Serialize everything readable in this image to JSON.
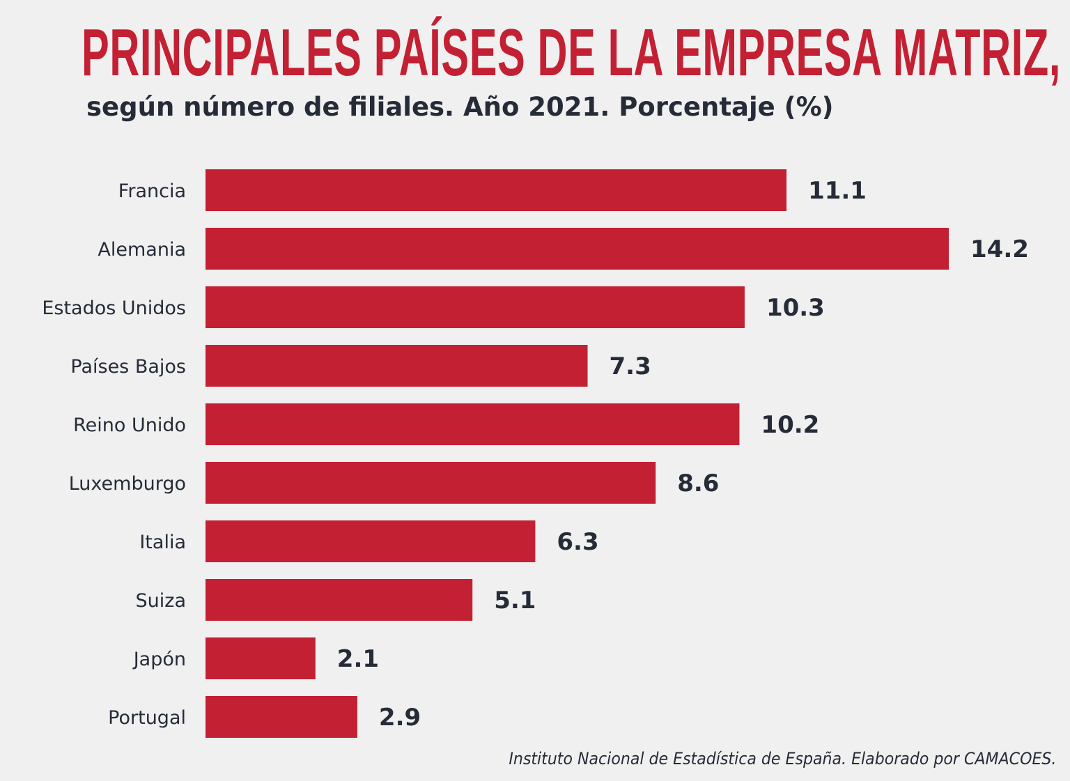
{
  "chart_data": {
    "type": "bar",
    "orientation": "horizontal",
    "title": "PRINCIPALES PAÍSES DE LA EMPRESA MATRIZ,",
    "subtitle": "según número de filiales. Año 2021. Porcentaje (%)",
    "categories": [
      "Francia",
      "Alemania",
      "Estados Unidos",
      "Países Bajos",
      "Reino Unido",
      "Luxemburgo",
      "Italia",
      "Suiza",
      "Japón",
      "Portugal"
    ],
    "values": [
      11.1,
      14.2,
      10.3,
      7.3,
      10.2,
      8.6,
      6.3,
      5.1,
      2.1,
      2.9
    ],
    "data_labels": [
      "11.1",
      "14.2",
      "10.3",
      "7.3",
      "10.2",
      "8.6",
      "6.3",
      "5.1",
      "2.1",
      "2.9"
    ],
    "xlim": [
      0,
      14.2
    ],
    "grid": false,
    "legend": "none",
    "bar_color": "#c32033",
    "source": "Instituto Nacional de Estadística de España. Elaborado por CAMACOES."
  }
}
